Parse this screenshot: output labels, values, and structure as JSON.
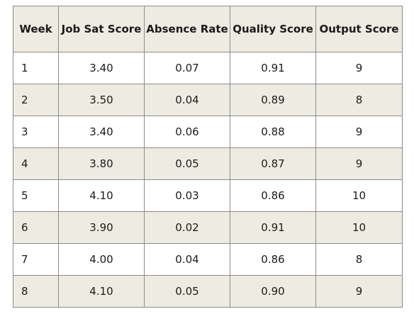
{
  "table": {
    "headers": [
      "Week",
      "Job Sat Score",
      "Absence Rate",
      "Quality Score",
      "Output Score"
    ],
    "rows": [
      [
        "1",
        "3.40",
        "0.07",
        "0.91",
        "9"
      ],
      [
        "2",
        "3.50",
        "0.04",
        "0.89",
        "8"
      ],
      [
        "3",
        "3.40",
        "0.06",
        "0.88",
        "9"
      ],
      [
        "4",
        "3.80",
        "0.05",
        "0.87",
        "9"
      ],
      [
        "5",
        "4.10",
        "0.03",
        "0.86",
        "10"
      ],
      [
        "6",
        "3.90",
        "0.02",
        "0.91",
        "10"
      ],
      [
        "7",
        "4.00",
        "0.04",
        "0.86",
        "8"
      ],
      [
        "8",
        "4.10",
        "0.05",
        "0.90",
        "9"
      ]
    ]
  },
  "colors": {
    "header_bg": "#eeece1",
    "shaded_row_bg": "#eeece1",
    "border": "#8a8a8a"
  }
}
